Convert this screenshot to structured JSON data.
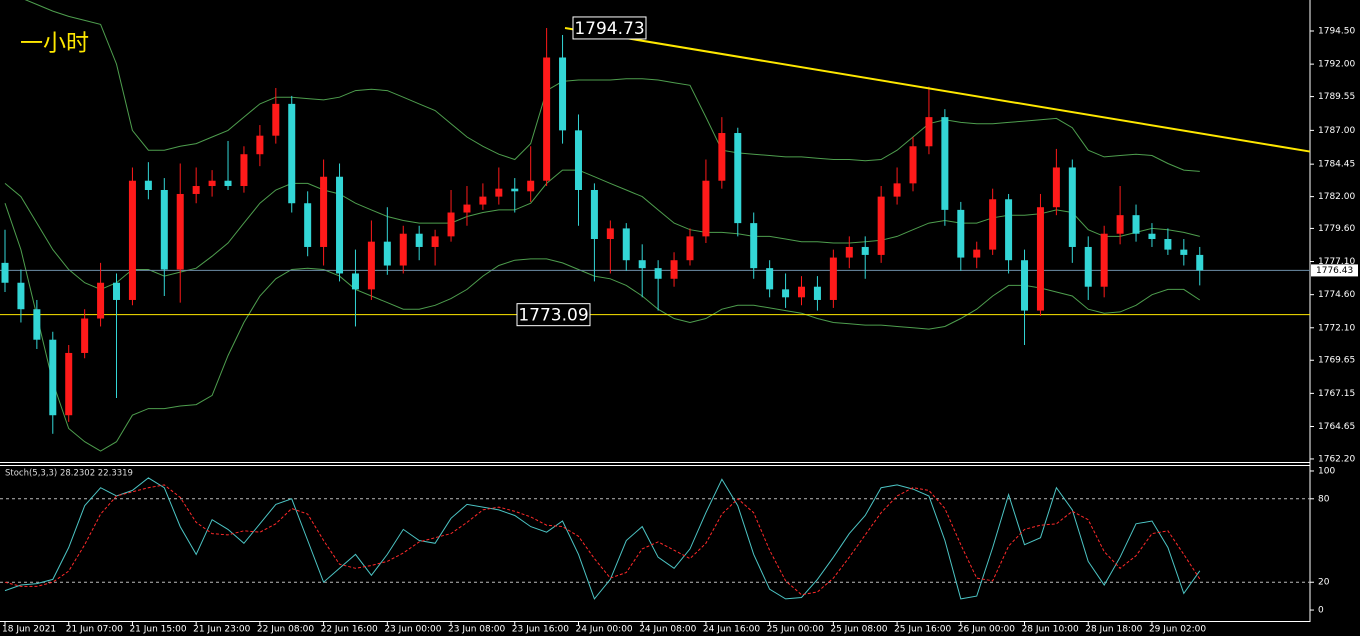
{
  "chart_data": [
    {
      "type": "candlestick",
      "title": "一小时",
      "up_color": "#ff1a1a",
      "down_color": "#33d6d6",
      "open": [
        1777,
        1775.5,
        1773.5,
        1771.2,
        1765.5,
        1770.2,
        1772.8,
        1775.5,
        1774.2,
        1783.2,
        1782.5,
        1776.5,
        1782.2,
        1782.8,
        1783.2,
        1782.8,
        1785.2,
        1786.6,
        1789,
        1781.5,
        1778.2,
        1783.5,
        1776.2,
        1775,
        1778.6,
        1776.8,
        1779.2,
        1778.2,
        1779,
        1780.8,
        1781.4,
        1782,
        1782.6,
        1782.4,
        1783.2,
        1792.5,
        1787,
        1782.5,
        1778.8,
        1779.6,
        1777.2,
        1776.6,
        1775.8,
        1777.2,
        1779,
        1783.2,
        1786.8,
        1780,
        1776.6,
        1775,
        1774.4,
        1775.2,
        1774.2,
        1777.4,
        1778.2,
        1777.6,
        1782,
        1783,
        1785.8,
        1788,
        1781,
        1777.4,
        1778,
        1781.8,
        1777.2,
        1773.4,
        1781.2,
        1784.2,
        1778.2,
        1775.2,
        1779.2,
        1780.6,
        1779.2,
        1778.8,
        1778,
        1777.6
      ],
      "high": [
        1779.5,
        1776.5,
        1774.2,
        1771.8,
        1770.8,
        1773.5,
        1777,
        1776.2,
        1784.2,
        1784.6,
        1783.4,
        1784.5,
        1784.2,
        1784,
        1786.2,
        1785.8,
        1787.4,
        1790.2,
        1789.6,
        1782.4,
        1784.8,
        1784.5,
        1778,
        1780.2,
        1781.2,
        1779.8,
        1779.8,
        1779.5,
        1782.5,
        1782.8,
        1783,
        1784.2,
        1783.4,
        1785.8,
        1794.73,
        1794.2,
        1788.2,
        1783,
        1780.2,
        1780,
        1778.4,
        1777.2,
        1777.8,
        1779.6,
        1784.8,
        1788,
        1787.2,
        1780.8,
        1777.2,
        1776.2,
        1776,
        1776,
        1778,
        1779,
        1779,
        1782.8,
        1784.2,
        1786.5,
        1790.3,
        1788.6,
        1781.6,
        1778.6,
        1782.6,
        1782.2,
        1778,
        1782.2,
        1785.6,
        1784.8,
        1779,
        1779.8,
        1782.8,
        1781.4,
        1780,
        1779.6,
        1778.8,
        1778.2
      ],
      "low": [
        1774.8,
        1772.5,
        1770.5,
        1764.1,
        1765,
        1769.8,
        1772.2,
        1766.8,
        1773.8,
        1781.8,
        1774.5,
        1774,
        1781.5,
        1782,
        1782.5,
        1782.3,
        1784.3,
        1786,
        1780.8,
        1777.5,
        1776.8,
        1775.6,
        1772.2,
        1774.2,
        1776.1,
        1776.2,
        1777.2,
        1776.8,
        1778.6,
        1779.8,
        1781,
        1781.4,
        1780.8,
        1781.6,
        1782.8,
        1786,
        1779.8,
        1775.6,
        1776.2,
        1776.4,
        1774.4,
        1773.4,
        1775.2,
        1776.8,
        1778.5,
        1782.6,
        1779,
        1775.8,
        1774.4,
        1773.6,
        1773.8,
        1773.4,
        1773.6,
        1776.6,
        1775.8,
        1777,
        1781.4,
        1782.4,
        1785.2,
        1779.8,
        1776.4,
        1776.6,
        1777.6,
        1776.2,
        1770.8,
        1773,
        1780.6,
        1777,
        1774.2,
        1774.4,
        1778.4,
        1778.6,
        1778.2,
        1777.6,
        1776.8,
        1775.3
      ],
      "close": [
        1775.5,
        1773.5,
        1771.2,
        1765.5,
        1770.2,
        1772.8,
        1775.5,
        1774.2,
        1783.2,
        1782.5,
        1776.5,
        1782.2,
        1782.8,
        1783.2,
        1782.8,
        1785.2,
        1786.6,
        1789,
        1781.5,
        1778.2,
        1783.5,
        1776.2,
        1775,
        1778.6,
        1776.8,
        1779.2,
        1778.2,
        1779,
        1780.8,
        1781.4,
        1782,
        1782.6,
        1782.4,
        1783.2,
        1792.5,
        1787,
        1782.5,
        1778.8,
        1779.6,
        1777.2,
        1776.6,
        1775.8,
        1777.2,
        1779,
        1783.2,
        1786.8,
        1780,
        1776.6,
        1775,
        1774.4,
        1775.2,
        1774.2,
        1777.4,
        1778.2,
        1777.6,
        1782,
        1783,
        1785.8,
        1788,
        1781,
        1777.4,
        1778,
        1781.8,
        1777.2,
        1773.4,
        1781.2,
        1784.2,
        1778.2,
        1775.2,
        1779.2,
        1780.6,
        1779.2,
        1778.8,
        1778,
        1777.6,
        1776.43
      ],
      "series": [
        {
          "color": "#4e9e4e",
          "values": [
            1797.5,
            1797,
            1796.5,
            1796,
            1795.6,
            1795.3,
            1795,
            1792,
            1787,
            1785.5,
            1785.5,
            1785.8,
            1786,
            1786.5,
            1787,
            1788,
            1789,
            1789.5,
            1789.5,
            1789.4,
            1789.3,
            1789.5,
            1790,
            1790.1,
            1790,
            1789.5,
            1789,
            1788.5,
            1787.5,
            1786.5,
            1785.8,
            1785.2,
            1784.8,
            1786,
            1790,
            1790.7,
            1790.8,
            1790.8,
            1790.8,
            1790.9,
            1790.9,
            1790.8,
            1790.6,
            1790.4,
            1788,
            1785.5,
            1785.3,
            1785.2,
            1785.1,
            1785,
            1785,
            1784.9,
            1784.8,
            1784.8,
            1784.7,
            1784.8,
            1785.5,
            1786.5,
            1787.5,
            1787.8,
            1787.6,
            1787.5,
            1787.5,
            1787.6,
            1787.7,
            1787.8,
            1787.9,
            1787.2,
            1785.5,
            1785,
            1785.1,
            1785.2,
            1785.1,
            1784.5,
            1784,
            1783.9
          ]
        },
        {
          "color": "#4e9e4e",
          "values": [
            1783,
            1782,
            1780,
            1778,
            1776.5,
            1775.5,
            1775,
            1775.5,
            1776.5,
            1776.5,
            1776,
            1776.3,
            1776.6,
            1777.5,
            1778.5,
            1780,
            1781.5,
            1782.5,
            1783,
            1783,
            1782.5,
            1782.2,
            1781.5,
            1781,
            1780.5,
            1780.2,
            1780,
            1780,
            1780,
            1780.5,
            1780.8,
            1781,
            1781,
            1781.5,
            1783,
            1784,
            1784,
            1783.5,
            1783,
            1782.5,
            1782,
            1781,
            1780,
            1779.5,
            1779.3,
            1779.3,
            1779.2,
            1779,
            1779,
            1778.8,
            1778.6,
            1778.6,
            1778.5,
            1778.5,
            1778.6,
            1778.7,
            1779,
            1779.5,
            1780,
            1780.2,
            1780,
            1780,
            1780.4,
            1780.6,
            1780.6,
            1780.7,
            1781,
            1780.8,
            1779.5,
            1779,
            1779,
            1779.3,
            1779.6,
            1779.5,
            1779.3,
            1779
          ]
        },
        {
          "color": "#4e9e4e",
          "values": [
            1781.5,
            1778,
            1773,
            1768,
            1764.5,
            1763.5,
            1762.8,
            1763.5,
            1765.5,
            1766,
            1766,
            1766.2,
            1766.3,
            1767,
            1770,
            1772.5,
            1774.5,
            1775.8,
            1776.5,
            1776.6,
            1776.5,
            1776,
            1775,
            1774.5,
            1774,
            1773.5,
            1773.5,
            1773.8,
            1774.3,
            1775,
            1776,
            1776.8,
            1777.2,
            1777.3,
            1777.3,
            1777,
            1776.5,
            1776,
            1775.8,
            1775.3,
            1774.5,
            1773.5,
            1772.8,
            1772.5,
            1772.8,
            1773.5,
            1773.8,
            1773.8,
            1773.6,
            1773.4,
            1773.2,
            1772.8,
            1772.5,
            1772.4,
            1772.3,
            1772.3,
            1772.2,
            1772.1,
            1772,
            1772.2,
            1772.8,
            1773.5,
            1774.5,
            1775.3,
            1775.3,
            1775.1,
            1774.8,
            1774.5,
            1773.5,
            1773.2,
            1773.3,
            1773.8,
            1774.6,
            1775,
            1775,
            1774.2
          ]
        }
      ],
      "ylim": [
        1761.97,
        1796.84
      ],
      "yticks": [
        {
          "value": 1794.5,
          "label": "1794.50"
        },
        {
          "value": 1792,
          "label": "1792.00"
        },
        {
          "value": 1789.55,
          "label": "1789.55"
        },
        {
          "value": 1787,
          "label": "1787.00"
        },
        {
          "value": 1784.45,
          "label": "1784.45"
        },
        {
          "value": 1782,
          "label": "1782.00"
        },
        {
          "value": 1779.6,
          "label": "1779.60"
        },
        {
          "value": 1777.1,
          "label": "1777.10"
        },
        {
          "value": 1774.6,
          "label": "1774.60"
        },
        {
          "value": 1772.1,
          "label": "1772.10"
        },
        {
          "value": 1769.65,
          "label": "1769.65"
        },
        {
          "value": 1767.15,
          "label": "1767.15"
        },
        {
          "value": 1764.65,
          "label": "1764.65"
        },
        {
          "value": 1762.2,
          "label": "1762.20"
        }
      ],
      "price_labels": [
        1794.73,
        1773.09
      ],
      "horizontal_line": 1773.09,
      "trendline": [
        1794.73,
        1785.4
      ],
      "current_price": 1776.43,
      "line_color": "#ffe800"
    },
    {
      "type": "line",
      "title": "Stoch(5,3,3) 28.2302 22.3319",
      "categories": [
        "18 Jun 2021",
        null,
        null,
        null,
        "21 Jun 07:00",
        null,
        null,
        null,
        "21 Jun 15:00",
        null,
        null,
        null,
        "21 Jun 23:00",
        null,
        null,
        null,
        "22 Jun 08:00",
        null,
        null,
        null,
        "22 Jun 16:00",
        null,
        null,
        null,
        "23 Jun 00:00",
        null,
        null,
        null,
        "23 Jun 08:00",
        null,
        null,
        null,
        "23 Jun 16:00",
        null,
        null,
        null,
        "24 Jun 00:00",
        null,
        null,
        null,
        "24 Jun 08:00",
        null,
        null,
        null,
        "24 Jun 16:00",
        null,
        null,
        null,
        "25 Jun 00:00",
        null,
        null,
        null,
        "25 Jun 08:00",
        null,
        null,
        null,
        "25 Jun 16:00",
        null,
        null,
        null,
        "26 Jun 00:00",
        null,
        null,
        null,
        "28 Jun 10:00",
        null,
        null,
        null,
        "28 Jun 18:00",
        null,
        null,
        null,
        "29 Jun 02:00",
        null,
        null,
        null
      ],
      "series": [
        {
          "color": "#4cc4c4",
          "values": [
            14,
            18,
            19,
            22,
            45,
            75,
            88,
            82,
            86,
            95,
            88,
            60,
            40,
            65,
            58,
            48,
            62,
            76,
            80,
            50,
            20,
            30,
            40,
            25,
            40,
            58,
            50,
            48,
            66,
            76,
            74,
            72,
            68,
            60,
            56,
            64,
            40,
            8,
            22,
            50,
            60,
            38,
            30,
            44,
            70,
            94,
            75,
            40,
            15,
            8,
            9,
            22,
            38,
            55,
            68,
            88,
            90,
            87,
            82,
            50,
            8,
            10,
            45,
            83,
            47,
            52,
            88,
            72,
            35,
            18,
            38,
            62,
            64,
            45,
            12,
            28.2302
          ]
        },
        {
          "color": "#ff2a2a",
          "dashed": true,
          "values": [
            20,
            17,
            17,
            20,
            28,
            47,
            69,
            82,
            85,
            88,
            90,
            81,
            63,
            55,
            54,
            57,
            56,
            62,
            73,
            69,
            50,
            33,
            30,
            32,
            35,
            41,
            49,
            52,
            55,
            63,
            72,
            74,
            71,
            67,
            61,
            60,
            53,
            37,
            23,
            27,
            44,
            49,
            43,
            37,
            48,
            69,
            80,
            70,
            43,
            21,
            11,
            13,
            23,
            38,
            54,
            70,
            82,
            88,
            86,
            73,
            47,
            23,
            21,
            46,
            58,
            61,
            62,
            71,
            65,
            42,
            30,
            39,
            55,
            57,
            40,
            22.3319
          ]
        }
      ],
      "ylim": [
        -8.6,
        104.3
      ],
      "yticks": [
        100,
        80,
        20,
        0
      ],
      "levels": [
        80,
        20
      ]
    }
  ]
}
